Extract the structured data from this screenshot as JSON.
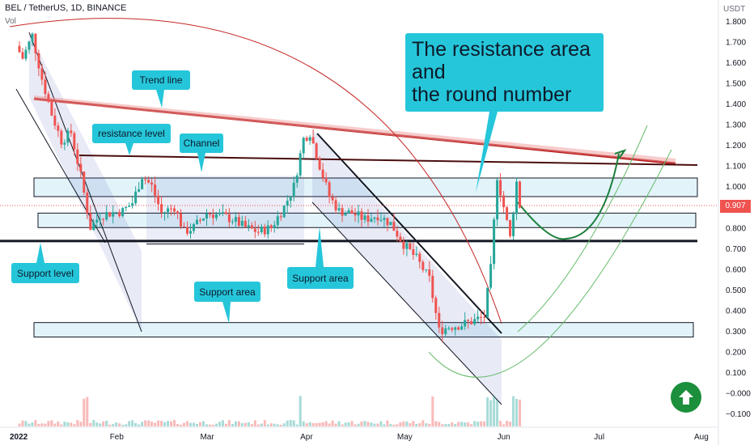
{
  "header": {
    "symbol_line": "BEL / TetherUS, 1D, BINANCE",
    "vol_label": "Vol"
  },
  "price_axis": {
    "unit": "USDT",
    "ticks": [
      "1.800",
      "1.700",
      "1.600",
      "1.500",
      "1.400",
      "1.300",
      "1.200",
      "1.100",
      "1.000",
      "0.900",
      "0.800",
      "0.700",
      "0.600",
      "0.500",
      "0.400",
      "0.300",
      "0.200",
      "0.100",
      "−0.000",
      "−0.100"
    ],
    "tick_values": [
      1.8,
      1.7,
      1.6,
      1.5,
      1.4,
      1.3,
      1.2,
      1.1,
      1.0,
      0.9,
      0.8,
      0.7,
      0.6,
      0.5,
      0.4,
      0.3,
      0.2,
      0.1,
      0.0,
      -0.1
    ],
    "current_price_label": "0.907",
    "current_price_value": 0.907
  },
  "time_axis": {
    "ticks": [
      "2022",
      "Feb",
      "Mar",
      "Apr",
      "May",
      "Jun",
      "Jul",
      "Aug"
    ]
  },
  "annotations": {
    "trend_line": "Trend line",
    "resistance_level": "resistance level",
    "channel": "Channel",
    "support_level": "Support level",
    "support_area_1": "Support area",
    "support_area_2": "Support area",
    "resistance_note": "The resistance area\nand\nthe round number"
  },
  "colors": {
    "up": "#26a69a",
    "down": "#ef5350",
    "callout": "#26c6da",
    "trend": "#b71c1c",
    "zone": "#d6eef8",
    "green_path": "#1b7f3a"
  },
  "chart_data": {
    "type": "candlestick",
    "title": "BEL / TetherUS, 1D, BINANCE",
    "ylim": [
      -0.15,
      1.85
    ],
    "x_ticks": [
      "2022",
      "Feb",
      "Mar",
      "Apr",
      "May",
      "Jun",
      "Jul",
      "Aug"
    ],
    "zones": [
      {
        "name": "resistance zone",
        "low": 0.95,
        "high": 1.04
      },
      {
        "name": "mid zone",
        "low": 0.8,
        "high": 0.87
      },
      {
        "name": "support area",
        "low": 0.27,
        "high": 0.34
      }
    ],
    "levels": [
      {
        "name": "support level",
        "value": 0.735
      },
      {
        "name": "resistance level",
        "value": 1.1
      }
    ],
    "close_path": [
      [
        "2022-01-01",
        1.68
      ],
      [
        "2022-01-03",
        1.62
      ],
      [
        "2022-01-06",
        1.73
      ],
      [
        "2022-01-09",
        1.52
      ],
      [
        "2022-01-12",
        1.35
      ],
      [
        "2022-01-15",
        1.22
      ],
      [
        "2022-01-18",
        1.26
      ],
      [
        "2022-01-21",
        1.05
      ],
      [
        "2022-01-24",
        0.8
      ],
      [
        "2022-01-27",
        0.86
      ],
      [
        "2022-01-30",
        0.87
      ],
      [
        "2022-02-03",
        0.88
      ],
      [
        "2022-02-06",
        0.92
      ],
      [
        "2022-02-09",
        1.05
      ],
      [
        "2022-02-12",
        1.0
      ],
      [
        "2022-02-15",
        0.87
      ],
      [
        "2022-02-19",
        0.9
      ],
      [
        "2022-02-22",
        0.78
      ],
      [
        "2022-02-25",
        0.8
      ],
      [
        "2022-03-01",
        0.87
      ],
      [
        "2022-03-05",
        0.86
      ],
      [
        "2022-03-09",
        0.84
      ],
      [
        "2022-03-13",
        0.8
      ],
      [
        "2022-03-17",
        0.78
      ],
      [
        "2022-03-21",
        0.8
      ],
      [
        "2022-03-25",
        0.9
      ],
      [
        "2022-03-28",
        1.0
      ],
      [
        "2022-03-31",
        1.23
      ],
      [
        "2022-04-02",
        1.26
      ],
      [
        "2022-04-05",
        1.1
      ],
      [
        "2022-04-08",
        0.95
      ],
      [
        "2022-04-11",
        0.88
      ],
      [
        "2022-04-15",
        0.87
      ],
      [
        "2022-04-19",
        0.84
      ],
      [
        "2022-04-23",
        0.86
      ],
      [
        "2022-04-27",
        0.82
      ],
      [
        "2022-05-01",
        0.72
      ],
      [
        "2022-05-05",
        0.65
      ],
      [
        "2022-05-09",
        0.55
      ],
      [
        "2022-05-12",
        0.3
      ],
      [
        "2022-05-15",
        0.32
      ],
      [
        "2022-05-19",
        0.33
      ],
      [
        "2022-05-23",
        0.35
      ],
      [
        "2022-05-26",
        0.37
      ],
      [
        "2022-05-28",
        0.6
      ],
      [
        "2022-05-30",
        1.05
      ],
      [
        "2022-06-01",
        0.9
      ],
      [
        "2022-06-03",
        0.75
      ],
      [
        "2022-06-05",
        1.02
      ],
      [
        "2022-06-06",
        0.907
      ]
    ]
  }
}
